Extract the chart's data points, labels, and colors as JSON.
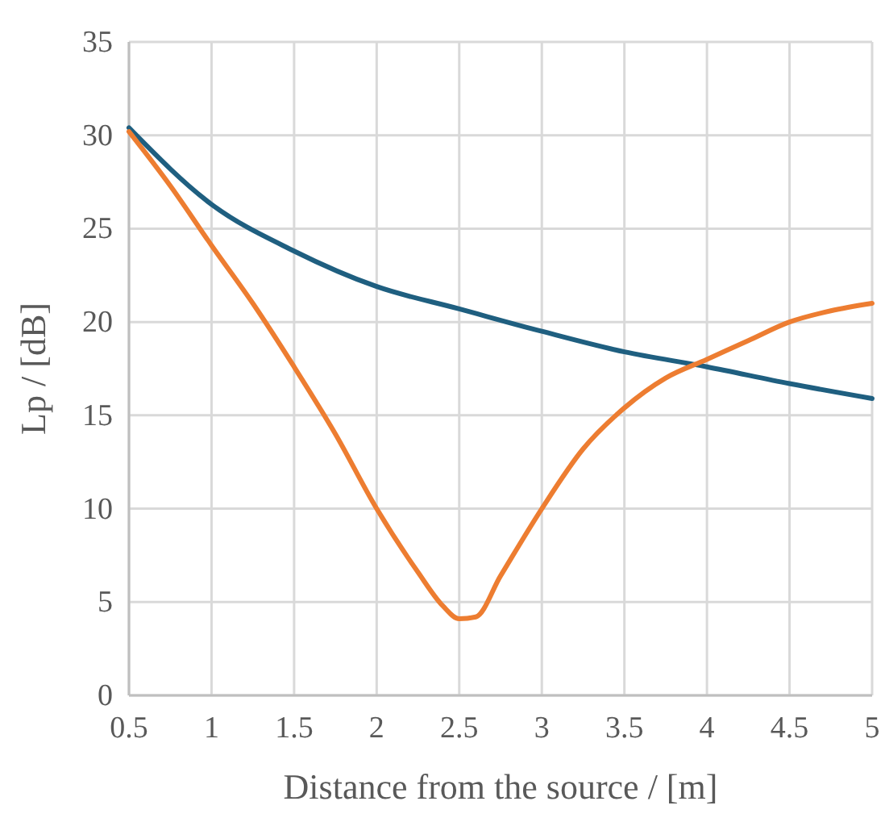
{
  "chart_data": {
    "type": "line",
    "xlabel": "Distance from the source /  [m]",
    "ylabel": "Lp /  [dB]",
    "xlim": [
      0.5,
      5
    ],
    "xticks": [
      0.5,
      1,
      1.5,
      2,
      2.5,
      3,
      3.5,
      4,
      4.5,
      5
    ],
    "ylim": [
      0,
      35
    ],
    "yticks": [
      0,
      5,
      10,
      15,
      20,
      25,
      30,
      35
    ],
    "grid": true,
    "marker": "none",
    "line_style": "solid",
    "series": [
      {
        "color": "#1f5f80",
        "x": [
          0.5,
          1,
          1.5,
          2,
          2.5,
          3,
          3.5,
          4,
          4.5,
          5
        ],
        "values": [
          30.4,
          26.3,
          23.8,
          21.9,
          20.7,
          19.5,
          18.4,
          17.6,
          16.7,
          15.9
        ]
      },
      {
        "color": "#ed7d31",
        "x": [
          0.5,
          0.75,
          1,
          1.25,
          1.5,
          1.75,
          2,
          2.25,
          2.4,
          2.5,
          2.6,
          2.75,
          3,
          3.25,
          3.5,
          3.75,
          4,
          4.25,
          4.5,
          4.75,
          5
        ],
        "values": [
          30.2,
          27.3,
          24.1,
          21,
          17.6,
          14,
          10,
          6.6,
          4.8,
          4.1,
          4.2,
          6.4,
          10,
          13.2,
          15.4,
          17,
          18,
          19,
          20,
          20.6,
          21
        ]
      }
    ]
  }
}
